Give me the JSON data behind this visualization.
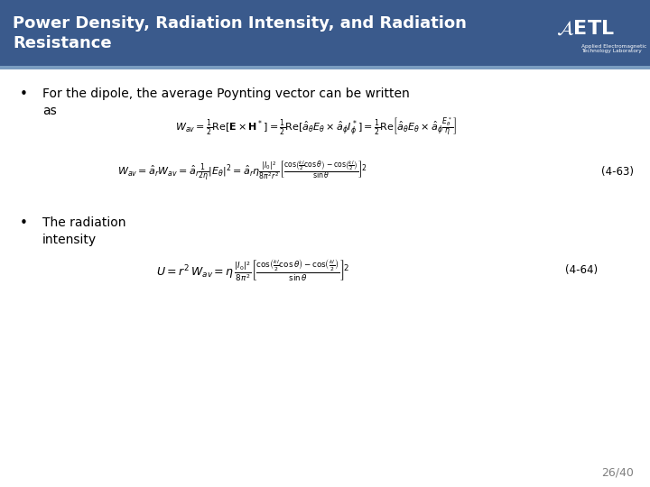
{
  "title_line1": "Power Density, Radiation Intensity, and Radiation",
  "title_line2": "Resistance",
  "title_bg_color": "#3A5A8C",
  "title_text_color": "#FFFFFF",
  "bg_color": "#FFFFFF",
  "bullet1_line1": "For the dipole, the average Poynting vector can be written",
  "bullet1_line2": "as",
  "bullet2_text": "The radiation",
  "bullet2_text2": "intensity",
  "eq1b_label": "(4-63)",
  "eq2_label": "(4-64)",
  "page_number": "26/40",
  "header_stripe_color": "#7A9CC0",
  "accent_color": "#6688AA"
}
